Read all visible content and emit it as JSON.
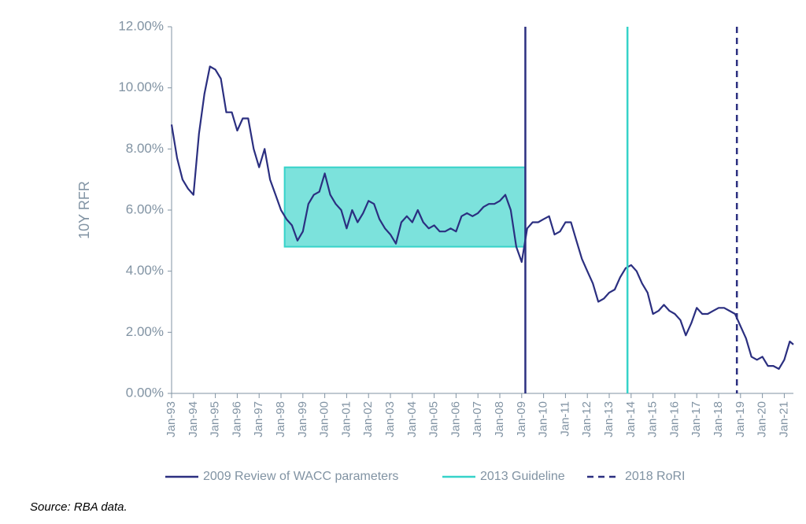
{
  "chart_data": {
    "type": "line",
    "y_axis_label": "10Y RFR",
    "source": "Source: RBA data.",
    "color": "#2b2f80",
    "x": [
      "1993-01",
      "1993-04",
      "1993-07",
      "1993-10",
      "1994-01",
      "1994-04",
      "1994-07",
      "1994-10",
      "1995-01",
      "1995-04",
      "1995-07",
      "1995-10",
      "1996-01",
      "1996-04",
      "1996-07",
      "1996-10",
      "1997-01",
      "1997-04",
      "1997-07",
      "1997-10",
      "1998-01",
      "1998-04",
      "1998-07",
      "1998-10",
      "1999-01",
      "1999-04",
      "1999-07",
      "1999-10",
      "2000-01",
      "2000-04",
      "2000-07",
      "2000-10",
      "2001-01",
      "2001-04",
      "2001-07",
      "2001-10",
      "2002-01",
      "2002-04",
      "2002-07",
      "2002-10",
      "2003-01",
      "2003-04",
      "2003-07",
      "2003-10",
      "2004-01",
      "2004-04",
      "2004-07",
      "2004-10",
      "2005-01",
      "2005-04",
      "2005-07",
      "2005-10",
      "2006-01",
      "2006-04",
      "2006-07",
      "2006-10",
      "2007-01",
      "2007-04",
      "2007-07",
      "2007-10",
      "2008-01",
      "2008-04",
      "2008-07",
      "2008-10",
      "2009-01",
      "2009-04",
      "2009-07",
      "2009-10",
      "2010-01",
      "2010-04",
      "2010-07",
      "2010-10",
      "2011-01",
      "2011-04",
      "2011-07",
      "2011-10",
      "2012-01",
      "2012-04",
      "2012-07",
      "2012-10",
      "2013-01",
      "2013-04",
      "2013-07",
      "2013-10",
      "2014-01",
      "2014-04",
      "2014-07",
      "2014-10",
      "2015-01",
      "2015-04",
      "2015-07",
      "2015-10",
      "2016-01",
      "2016-04",
      "2016-07",
      "2016-10",
      "2017-01",
      "2017-04",
      "2017-07",
      "2017-10",
      "2018-01",
      "2018-04",
      "2018-07",
      "2018-10",
      "2019-01",
      "2019-04",
      "2019-07",
      "2019-10",
      "2020-01",
      "2020-04",
      "2020-07",
      "2020-10",
      "2021-01",
      "2021-04",
      "2021-06"
    ],
    "values": [
      8.8,
      7.7,
      7.0,
      6.7,
      6.5,
      8.5,
      9.8,
      10.7,
      10.6,
      10.3,
      9.2,
      9.2,
      8.6,
      9.0,
      9.0,
      8.0,
      7.4,
      8.0,
      7.0,
      6.5,
      6.0,
      5.7,
      5.5,
      5.0,
      5.3,
      6.2,
      6.5,
      6.6,
      7.2,
      6.5,
      6.2,
      6.0,
      5.4,
      6.0,
      5.6,
      5.9,
      6.3,
      6.2,
      5.7,
      5.4,
      5.2,
      4.9,
      5.6,
      5.8,
      5.6,
      6.0,
      5.6,
      5.4,
      5.5,
      5.3,
      5.3,
      5.4,
      5.3,
      5.8,
      5.9,
      5.8,
      5.9,
      6.1,
      6.2,
      6.2,
      6.3,
      6.5,
      6.0,
      4.8,
      4.3,
      5.4,
      5.6,
      5.6,
      5.7,
      5.8,
      5.2,
      5.3,
      5.6,
      5.6,
      5.0,
      4.4,
      4.0,
      3.6,
      3.0,
      3.1,
      3.3,
      3.4,
      3.8,
      4.1,
      4.2,
      4.0,
      3.6,
      3.3,
      2.6,
      2.7,
      2.9,
      2.7,
      2.6,
      2.4,
      1.9,
      2.3,
      2.8,
      2.6,
      2.6,
      2.7,
      2.8,
      2.8,
      2.7,
      2.6,
      2.2,
      1.8,
      1.2,
      1.1,
      1.2,
      0.9,
      0.9,
      0.8,
      1.1,
      1.7,
      1.6
    ],
    "xlim": [
      "1993-01",
      "2021-06"
    ],
    "xticks": [
      {
        "value": "1993-01",
        "label": "Jan-93"
      },
      {
        "value": "1994-01",
        "label": "Jan-94"
      },
      {
        "value": "1995-01",
        "label": "Jan-95"
      },
      {
        "value": "1996-01",
        "label": "Jan-96"
      },
      {
        "value": "1997-01",
        "label": "Jan-97"
      },
      {
        "value": "1998-01",
        "label": "Jan-98"
      },
      {
        "value": "1999-01",
        "label": "Jan-99"
      },
      {
        "value": "2000-01",
        "label": "Jan-00"
      },
      {
        "value": "2001-01",
        "label": "Jan-01"
      },
      {
        "value": "2002-01",
        "label": "Jan-02"
      },
      {
        "value": "2003-01",
        "label": "Jan-03"
      },
      {
        "value": "2004-01",
        "label": "Jan-04"
      },
      {
        "value": "2005-01",
        "label": "Jan-05"
      },
      {
        "value": "2006-01",
        "label": "Jan-06"
      },
      {
        "value": "2007-01",
        "label": "Jan-07"
      },
      {
        "value": "2008-01",
        "label": "Jan-08"
      },
      {
        "value": "2009-01",
        "label": "Jan-09"
      },
      {
        "value": "2010-01",
        "label": "Jan-10"
      },
      {
        "value": "2011-01",
        "label": "Jan-11"
      },
      {
        "value": "2012-01",
        "label": "Jan-12"
      },
      {
        "value": "2013-01",
        "label": "Jan-13"
      },
      {
        "value": "2014-01",
        "label": "Jan-14"
      },
      {
        "value": "2015-01",
        "label": "Jan-15"
      },
      {
        "value": "2016-01",
        "label": "Jan-16"
      },
      {
        "value": "2017-01",
        "label": "Jan-17"
      },
      {
        "value": "2018-01",
        "label": "Jan-18"
      },
      {
        "value": "2019-01",
        "label": "Jan-19"
      },
      {
        "value": "2020-01",
        "label": "Jan-20"
      },
      {
        "value": "2021-01",
        "label": "Jan-21"
      }
    ],
    "ylim": [
      0,
      12
    ],
    "yticks": [
      {
        "value": 0,
        "label": "0.00%"
      },
      {
        "value": 2,
        "label": "2.00%"
      },
      {
        "value": 4,
        "label": "4.00%"
      },
      {
        "value": 6,
        "label": "6.00%"
      },
      {
        "value": 8,
        "label": "8.00%"
      },
      {
        "value": 10,
        "label": "10.00%"
      },
      {
        "value": 12,
        "label": "12.00%"
      }
    ],
    "shaded_region": {
      "x": [
        "1998-03",
        "2009-03"
      ],
      "y": [
        4.8,
        7.4
      ],
      "color": "#36d3c9"
    },
    "markers": [
      {
        "name": "2009 Review of WACC parameters",
        "x": "2009-03",
        "color": "#2b2f80",
        "style": "solid"
      },
      {
        "name": "2013 Guideline",
        "x": "2013-11",
        "color": "#36d3c9",
        "style": "solid"
      },
      {
        "name": "2018 RoRI",
        "x": "2018-11",
        "color": "#2b2f80",
        "style": "dashed"
      }
    ]
  }
}
